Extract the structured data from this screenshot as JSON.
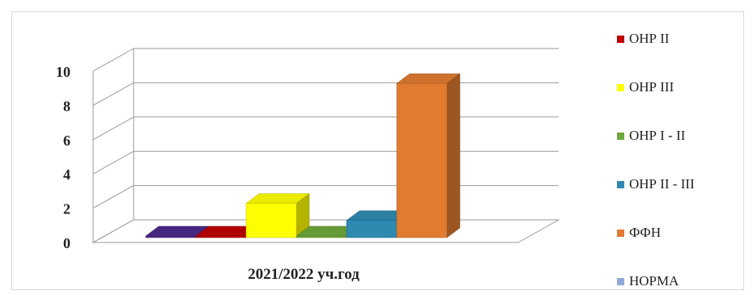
{
  "chart_data": {
    "type": "bar",
    "categories": [
      "2021/2022 уч.год"
    ],
    "xlabel": "2021/2022 уч.год",
    "ylim": [
      0,
      10
    ],
    "yticks": [
      "0",
      "2",
      "4",
      "6",
      "8",
      "10"
    ],
    "grid": true,
    "legend_position": "right",
    "series": [
      {
        "name": "ОНР II",
        "values": [
          0
        ],
        "color": "#c00000"
      },
      {
        "name": "ОНР III",
        "values": [
          2
        ],
        "color": "#ffff00"
      },
      {
        "name": "ОНР I - II",
        "values": [
          0
        ],
        "color": "#6fa83a"
      },
      {
        "name": "ОНР  II - III",
        "values": [
          1
        ],
        "color": "#2e8ab0"
      },
      {
        "name": "ФФН",
        "values": [
          9
        ],
        "color": "#e07b30"
      },
      {
        "name": "НОРМА",
        "values": [
          0
        ],
        "color": "#8ea9db"
      }
    ],
    "extra_bar": {
      "values": [
        0
      ],
      "color": "#4b2a8a"
    }
  }
}
